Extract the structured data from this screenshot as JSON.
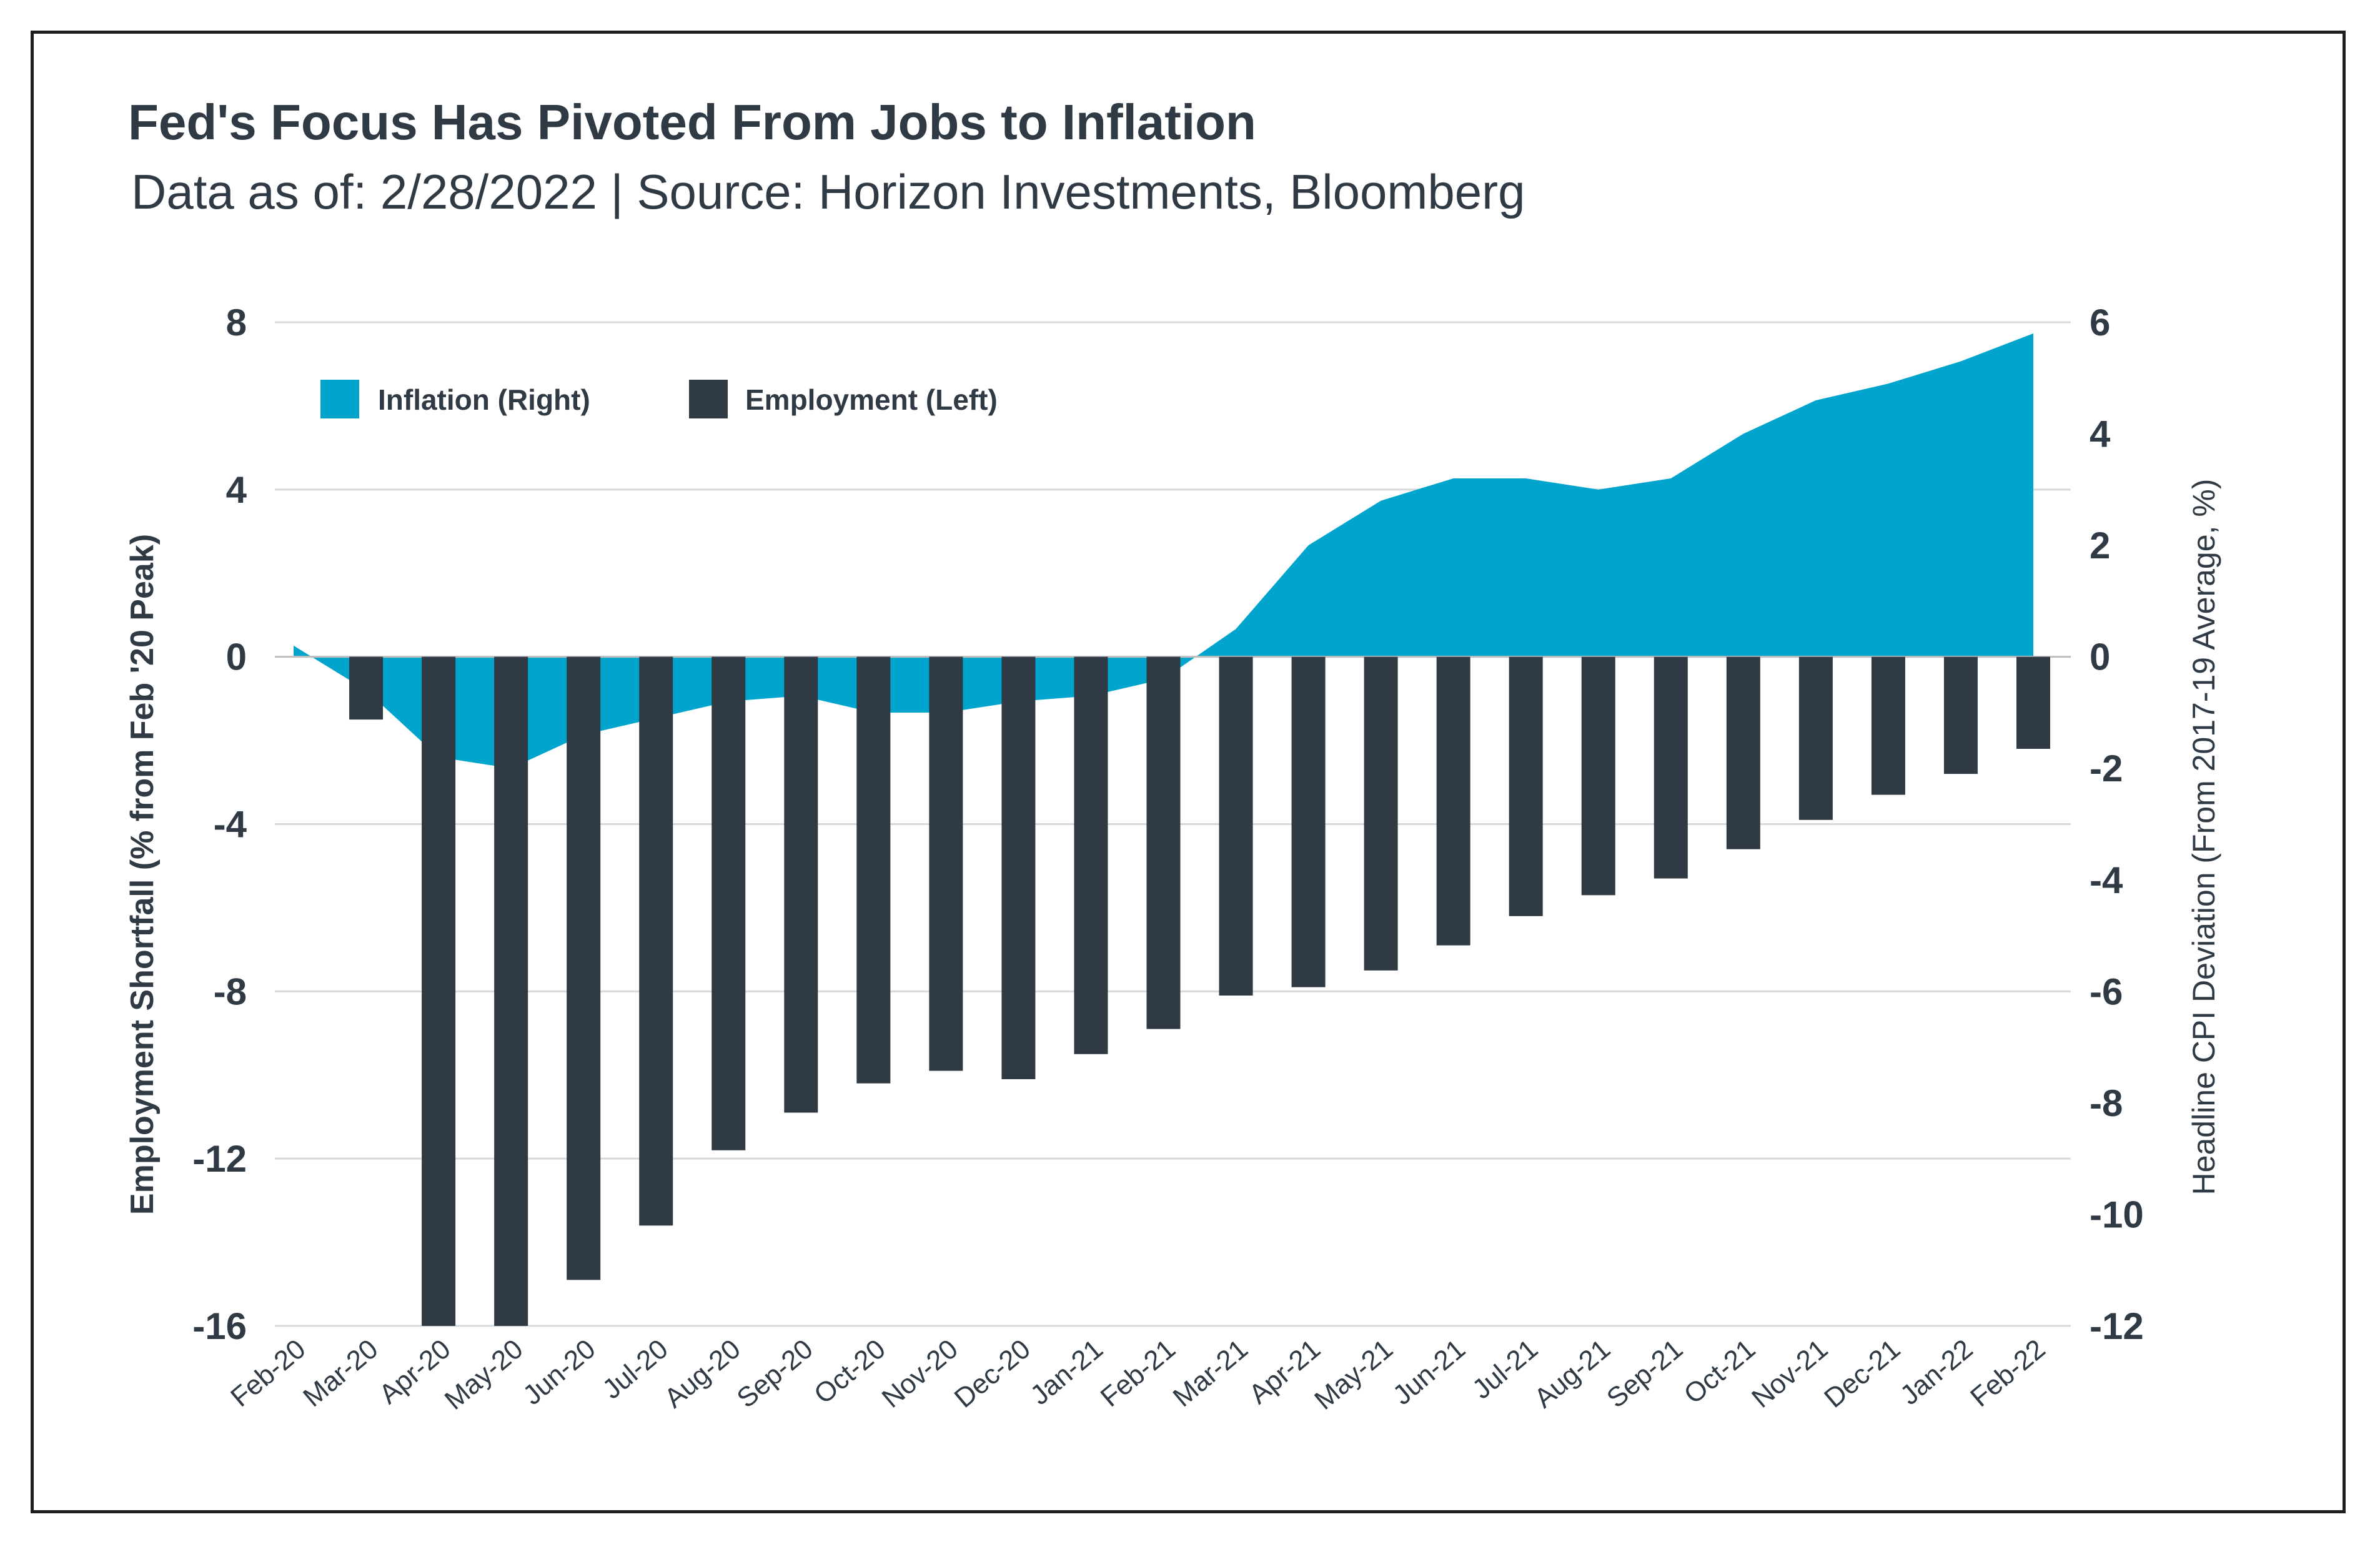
{
  "title": "Fed's Focus Has Pivoted From Jobs to Inflation",
  "subtitle": "Data as of: 2/28/2022 | Source: Horizon Investments, Bloomberg",
  "colors": {
    "inflation": "#00a4cc",
    "employment": "#2f3a45",
    "grid": "#d9d9d9",
    "text": "#2f3a45"
  },
  "chart_data": {
    "type": "bar",
    "categories": [
      "Feb-20",
      "Mar-20",
      "Apr-20",
      "May-20",
      "Jun-20",
      "Jul-20",
      "Aug-20",
      "Sep-20",
      "Oct-20",
      "Nov-20",
      "Dec-20",
      "Jan-21",
      "Feb-21",
      "Mar-21",
      "Apr-21",
      "May-21",
      "Jun-21",
      "Jul-21",
      "Aug-21",
      "Sep-21",
      "Oct-21",
      "Nov-21",
      "Dec-21",
      "Jan-22",
      "Feb-22"
    ],
    "series": [
      {
        "name": "Employment (Left)",
        "type": "bar",
        "axis": "left",
        "values": [
          0,
          -1.5,
          -16.3,
          -16.3,
          -14.9,
          -13.6,
          -11.8,
          -10.9,
          -10.2,
          -9.9,
          -10.1,
          -9.5,
          -8.9,
          -8.1,
          -7.9,
          -7.5,
          -6.9,
          -6.2,
          -5.7,
          -5.3,
          -4.6,
          -3.9,
          -3.3,
          -2.8,
          -2.2
        ]
      },
      {
        "name": "Inflation (Right)",
        "type": "area",
        "axis": "right",
        "values": [
          0.2,
          -0.6,
          -1.8,
          -2.0,
          -1.4,
          -1.1,
          -0.8,
          -0.7,
          -1.0,
          -1.0,
          -0.8,
          -0.7,
          -0.4,
          0.5,
          2.0,
          2.8,
          3.2,
          3.2,
          3.0,
          3.2,
          4.0,
          4.6,
          4.9,
          5.3,
          5.8
        ]
      }
    ],
    "y_left": {
      "label": "Employment Shortfall (% from Feb '20 Peak)",
      "ticks": [
        "8",
        "4",
        "0",
        "-4",
        "-8",
        "-12",
        "-16"
      ],
      "range": [
        -16,
        8
      ]
    },
    "y_right": {
      "label": "Headline CPI Deviation (From 2017-19 Average, %)",
      "ticks": [
        "6",
        "4",
        "2",
        "0",
        "-2",
        "-4",
        "-6",
        "-8",
        "-10",
        "-12"
      ],
      "range": [
        -12,
        6
      ]
    },
    "legend": [
      {
        "label": "Inflation (Right)",
        "color": "#00a4cc"
      },
      {
        "label": "Employment (Left)",
        "color": "#2f3a45"
      }
    ],
    "legend_position": "top-left",
    "grid": true
  }
}
